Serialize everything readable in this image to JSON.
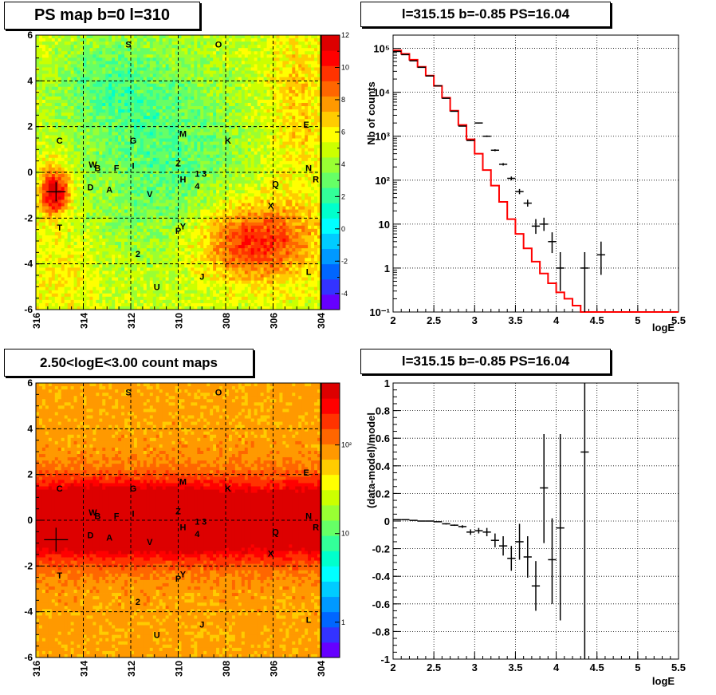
{
  "panels": {
    "map1_title": "PS map b=0 l=310",
    "spec_title": "l=315.15 b=-0.85 PS=16.04",
    "map2_title": "2.50<logE<3.00 count maps",
    "resid_title": "l=315.15 b=-0.85 PS=16.04"
  },
  "colors": {
    "model_line": "#ff0000",
    "data": "#000000",
    "palette": [
      "#6600ff",
      "#3333ff",
      "#0066ff",
      "#0099ff",
      "#00ccff",
      "#00ffff",
      "#00ffcc",
      "#33ff99",
      "#66ff66",
      "#99ff33",
      "#ccff00",
      "#ffff00",
      "#ffcc00",
      "#ff9900",
      "#ff6600",
      "#ff3300",
      "#ff0000",
      "#dd0000"
    ]
  },
  "chart_data": [
    {
      "type": "heatmap",
      "name_hint": "ps-map",
      "xticks": [
        "316",
        "314",
        "312",
        "310",
        "308",
        "306",
        "304"
      ],
      "yticks": [
        "6",
        "4",
        "2",
        "0",
        "-2",
        "-4",
        "-6"
      ],
      "xlim": [
        316,
        304
      ],
      "ylim": [
        -6,
        6
      ],
      "colorbar_ticks": [
        "12",
        "10",
        "8",
        "6",
        "4",
        "2",
        "0",
        "-2",
        "-4"
      ],
      "colorbar_range": [
        -5,
        12
      ],
      "marker": {
        "l": 315.15,
        "b": -0.85
      },
      "sources": [
        {
          "label": "S",
          "l": 312.1,
          "b": 5.6
        },
        {
          "label": "O",
          "l": 308.3,
          "b": 5.6
        },
        {
          "label": "E",
          "l": 304.6,
          "b": 2.1
        },
        {
          "label": "C",
          "l": 315.0,
          "b": 1.4
        },
        {
          "label": "G",
          "l": 311.9,
          "b": 1.4
        },
        {
          "label": "M",
          "l": 309.8,
          "b": 1.7
        },
        {
          "label": "K",
          "l": 307.9,
          "b": 1.4
        },
        {
          "label": "W",
          "l": 313.6,
          "b": 0.35
        },
        {
          "label": "B",
          "l": 313.4,
          "b": 0.2
        },
        {
          "label": "F",
          "l": 312.6,
          "b": 0.2
        },
        {
          "label": "I",
          "l": 311.9,
          "b": 0.3
        },
        {
          "label": "Z",
          "l": 310.0,
          "b": 0.4
        },
        {
          "label": "1",
          "l": 309.2,
          "b": -0.05
        },
        {
          "label": "3",
          "l": 308.9,
          "b": -0.05
        },
        {
          "label": "H",
          "l": 309.8,
          "b": -0.3
        },
        {
          "label": "4",
          "l": 309.2,
          "b": -0.6
        },
        {
          "label": "N",
          "l": 304.5,
          "b": 0.2
        },
        {
          "label": "R",
          "l": 304.2,
          "b": -0.3
        },
        {
          "label": "Q",
          "l": 305.9,
          "b": -0.5
        },
        {
          "label": "D",
          "l": 313.7,
          "b": -0.65
        },
        {
          "label": "A",
          "l": 312.9,
          "b": -0.75
        },
        {
          "label": "V",
          "l": 311.2,
          "b": -0.95
        },
        {
          "label": "X",
          "l": 306.1,
          "b": -1.45
        },
        {
          "label": "T",
          "l": 315.0,
          "b": -2.4
        },
        {
          "label": "Y",
          "l": 309.8,
          "b": -2.35
        },
        {
          "label": "P",
          "l": 310.0,
          "b": -2.55
        },
        {
          "label": "2",
          "l": 311.7,
          "b": -3.55
        },
        {
          "label": "J",
          "l": 309.0,
          "b": -4.55
        },
        {
          "label": "L",
          "l": 304.5,
          "b": -4.35
        },
        {
          "label": "U",
          "l": 310.9,
          "b": -5.0
        }
      ]
    },
    {
      "type": "line",
      "name_hint": "spectrum",
      "xlabel": "logE",
      "ylabel": "Nb of counts",
      "xlim": [
        2,
        5.5
      ],
      "ylim": [
        0.1,
        200000
      ],
      "log_y": true,
      "xticks": [
        "2",
        "2.5",
        "3",
        "3.5",
        "4",
        "4.5",
        "5",
        "5.5"
      ],
      "yticks": [
        {
          "v": 100000,
          "t": "10⁵"
        },
        {
          "v": 10000,
          "t": "10⁴"
        },
        {
          "v": 1000,
          "t": "10³"
        },
        {
          "v": 100,
          "t": "10²"
        },
        {
          "v": 10,
          "t": "10"
        },
        {
          "v": 1,
          "t": "1"
        },
        {
          "v": 0.1,
          "t": "10⁻¹"
        }
      ],
      "model_edges": [
        2.0,
        2.1,
        2.2,
        2.3,
        2.4,
        2.5,
        2.6,
        2.7,
        2.8,
        2.9,
        3.0,
        3.1,
        3.2,
        3.3,
        3.4,
        3.5,
        3.6,
        3.7,
        3.8,
        3.9,
        4.0,
        4.1,
        4.2,
        4.3,
        4.4,
        4.5,
        4.6,
        4.7,
        4.8,
        4.9,
        5.0,
        5.5
      ],
      "model_values": [
        90000,
        75000,
        55000,
        38000,
        24000,
        14000,
        7500,
        3800,
        1800,
        850,
        400,
        170,
        75,
        32,
        13,
        6,
        2.8,
        1.4,
        0.75,
        0.45,
        0.28,
        0.2,
        0.14,
        0.1,
        0.1,
        0.1,
        0.1,
        0.1,
        0.1,
        0.1,
        0.1
      ],
      "data": [
        {
          "x": 2.05,
          "y": 85000,
          "xe": 0.05,
          "yl": 85000,
          "yh": 85000
        },
        {
          "x": 2.15,
          "y": 72000,
          "xe": 0.05,
          "yl": 72000,
          "yh": 72000
        },
        {
          "x": 2.25,
          "y": 52000,
          "xe": 0.05,
          "yl": 52000,
          "yh": 52000
        },
        {
          "x": 2.35,
          "y": 37000,
          "xe": 0.05,
          "yl": 37000,
          "yh": 37000
        },
        {
          "x": 2.45,
          "y": 23500,
          "xe": 0.05,
          "yl": 23500,
          "yh": 23500
        },
        {
          "x": 2.55,
          "y": 14000,
          "xe": 0.05,
          "yl": 14000,
          "yh": 14000
        },
        {
          "x": 2.65,
          "y": 7300,
          "xe": 0.05,
          "yl": 7300,
          "yh": 7300
        },
        {
          "x": 2.75,
          "y": 3700,
          "xe": 0.05,
          "yl": 3700,
          "yh": 3700
        },
        {
          "x": 2.85,
          "y": 1700,
          "xe": 0.05,
          "yl": 1700,
          "yh": 1700
        },
        {
          "x": 2.95,
          "y": 800,
          "xe": 0.05,
          "yl": 780,
          "yh": 830
        },
        {
          "x": 3.05,
          "y": 2000,
          "xe": 0.05,
          "yl": 1950,
          "yh": 2050
        },
        {
          "x": 3.15,
          "y": 1000,
          "xe": 0.05,
          "yl": 960,
          "yh": 1040
        },
        {
          "x": 3.25,
          "y": 480,
          "xe": 0.05,
          "yl": 455,
          "yh": 505
        },
        {
          "x": 3.35,
          "y": 230,
          "xe": 0.05,
          "yl": 215,
          "yh": 245
        },
        {
          "x": 3.45,
          "y": 110,
          "xe": 0.05,
          "yl": 99,
          "yh": 121
        },
        {
          "x": 3.55,
          "y": 55,
          "xe": 0.05,
          "yl": 48,
          "yh": 63
        },
        {
          "x": 3.65,
          "y": 30,
          "xe": 0.05,
          "yl": 25,
          "yh": 36
        },
        {
          "x": 3.75,
          "y": 9,
          "xe": 0.05,
          "yl": 6,
          "yh": 13
        },
        {
          "x": 3.85,
          "y": 10,
          "xe": 0.05,
          "yl": 7,
          "yh": 14
        },
        {
          "x": 3.95,
          "y": 4,
          "xe": 0.05,
          "yl": 2.2,
          "yh": 6.5
        },
        {
          "x": 4.05,
          "y": 1,
          "xe": 0.05,
          "yl": 0.3,
          "yh": 2.3
        },
        {
          "x": 4.35,
          "y": 1,
          "xe": 0.05,
          "yl": 0.1,
          "yh": 2.3
        },
        {
          "x": 4.55,
          "y": 2,
          "xe": 0.05,
          "yl": 0.7,
          "yh": 4
        }
      ]
    },
    {
      "type": "heatmap",
      "name_hint": "count-map",
      "xticks": [
        "316",
        "314",
        "312",
        "310",
        "308",
        "306",
        "304"
      ],
      "yticks": [
        "6",
        "4",
        "2",
        "0",
        "-2",
        "-4",
        "-6"
      ],
      "xlim": [
        316,
        304
      ],
      "ylim": [
        -6,
        6
      ],
      "colorbar_ticks": [
        {
          "v": 100,
          "t": "10²"
        },
        {
          "v": 10,
          "t": "10"
        },
        {
          "v": 1,
          "t": "1"
        }
      ],
      "colorbar_log_range": [
        0.4,
        500
      ],
      "marker": {
        "l": 315.15,
        "b": -0.85
      }
    },
    {
      "type": "scatter",
      "name_hint": "residuals",
      "xlabel": "logE",
      "ylabel": "(data-model)/model",
      "xlim": [
        2,
        5.5
      ],
      "ylim": [
        -1,
        1
      ],
      "xticks": [
        "2",
        "2.5",
        "3",
        "3.5",
        "4",
        "4.5",
        "5",
        "5.5"
      ],
      "yticks": [
        "1",
        "0.8",
        "0.6",
        "0.4",
        "0.2",
        "0",
        "-0.2",
        "-0.4",
        "-0.6",
        "-0.8",
        "-1"
      ],
      "data": [
        {
          "x": 2.05,
          "y": 0.01,
          "xe": 0.05,
          "yl": 0.01,
          "yh": 0.01
        },
        {
          "x": 2.15,
          "y": 0.01,
          "xe": 0.05,
          "yl": 0.01,
          "yh": 0.01
        },
        {
          "x": 2.25,
          "y": 0.005,
          "xe": 0.05,
          "yl": 0.005,
          "yh": 0.005
        },
        {
          "x": 2.35,
          "y": 0.0,
          "xe": 0.05,
          "yl": 0.0,
          "yh": 0.0
        },
        {
          "x": 2.45,
          "y": 0.0,
          "xe": 0.05,
          "yl": 0.0,
          "yh": 0.0
        },
        {
          "x": 2.55,
          "y": -0.005,
          "xe": 0.05,
          "yl": -0.005,
          "yh": -0.005
        },
        {
          "x": 2.65,
          "y": -0.02,
          "xe": 0.05,
          "yl": -0.025,
          "yh": -0.015
        },
        {
          "x": 2.75,
          "y": -0.03,
          "xe": 0.05,
          "yl": -0.035,
          "yh": -0.025
        },
        {
          "x": 2.85,
          "y": -0.04,
          "xe": 0.05,
          "yl": -0.05,
          "yh": -0.03
        },
        {
          "x": 2.95,
          "y": -0.08,
          "xe": 0.05,
          "yl": -0.1,
          "yh": -0.06
        },
        {
          "x": 3.05,
          "y": -0.07,
          "xe": 0.05,
          "yl": -0.09,
          "yh": -0.05
        },
        {
          "x": 3.15,
          "y": -0.08,
          "xe": 0.05,
          "yl": -0.11,
          "yh": -0.05
        },
        {
          "x": 3.25,
          "y": -0.14,
          "xe": 0.05,
          "yl": -0.19,
          "yh": -0.09
        },
        {
          "x": 3.35,
          "y": -0.18,
          "xe": 0.05,
          "yl": -0.25,
          "yh": -0.11
        },
        {
          "x": 3.45,
          "y": -0.27,
          "xe": 0.05,
          "yl": -0.36,
          "yh": -0.18
        },
        {
          "x": 3.55,
          "y": -0.15,
          "xe": 0.05,
          "yl": -0.28,
          "yh": -0.02
        },
        {
          "x": 3.65,
          "y": -0.26,
          "xe": 0.05,
          "yl": -0.41,
          "yh": -0.11
        },
        {
          "x": 3.75,
          "y": -0.47,
          "xe": 0.05,
          "yl": -0.65,
          "yh": -0.29
        },
        {
          "x": 3.85,
          "y": 0.24,
          "xe": 0.05,
          "yl": -0.16,
          "yh": 0.63
        },
        {
          "x": 3.95,
          "y": -0.28,
          "xe": 0.05,
          "yl": -0.6,
          "yh": 0.02
        },
        {
          "x": 4.05,
          "y": -0.05,
          "xe": 0.05,
          "yl": -0.72,
          "yh": 0.63
        },
        {
          "x": 4.35,
          "y": 0.5,
          "xe": 0.05,
          "yl": -1.0,
          "yh": 1.0
        }
      ]
    }
  ]
}
